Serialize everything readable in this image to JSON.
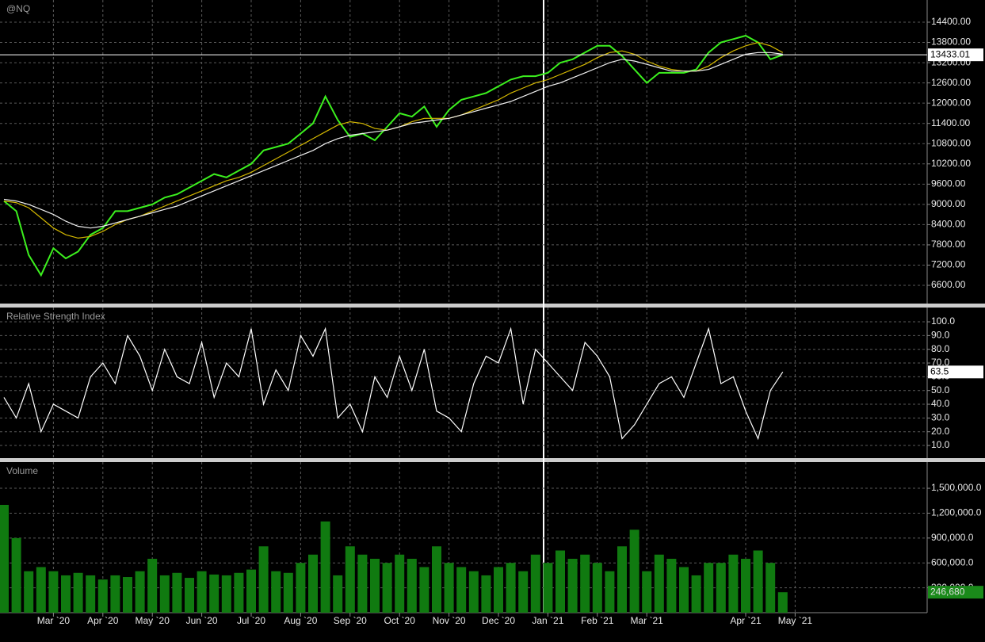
{
  "chart_data": [
    {
      "type": "line",
      "title": "@NQ",
      "ylim": [
        6060,
        15058
      ],
      "yticks": [
        {
          "value": 6600,
          "label": "6600.00"
        },
        {
          "value": 7200,
          "label": "7200.00"
        },
        {
          "value": 7800,
          "label": "7800.00"
        },
        {
          "value": 8400,
          "label": "8400.00"
        },
        {
          "value": 9000,
          "label": "9000.00"
        },
        {
          "value": 9600,
          "label": "9600.00"
        },
        {
          "value": 10200,
          "label": "10200.00"
        },
        {
          "value": 10800,
          "label": "10800.00"
        },
        {
          "value": 11400,
          "label": "11400.00"
        },
        {
          "value": 12000,
          "label": "12000.00"
        },
        {
          "value": 12600,
          "label": "12600.00"
        },
        {
          "value": 13200,
          "label": "13200.00"
        },
        {
          "value": 13800,
          "label": "13800.00"
        },
        {
          "value": 14400,
          "label": "14400.00"
        }
      ],
      "grid": true,
      "series": [
        {
          "color": "#3cf01e",
          "values": [
            9100,
            8800,
            7500,
            6900,
            7700,
            7400,
            7600,
            8100,
            8300,
            8800,
            8800,
            8900,
            9000,
            9200,
            9300,
            9500,
            9700,
            9900,
            9800,
            10000,
            10200,
            10600,
            10700,
            10800,
            11100,
            11400,
            12200,
            11500,
            11000,
            11100,
            10900,
            11300,
            11700,
            11600,
            11900,
            11300,
            11800,
            12100,
            12200,
            12300,
            12500,
            12700,
            12800,
            12800,
            12900,
            13200,
            13300,
            13500,
            13700,
            13700,
            13400,
            13000,
            12600,
            12900,
            12900,
            12900,
            13000,
            13500,
            13800,
            13900,
            14000,
            13800,
            13300,
            13433.01,
            null
          ]
        },
        {
          "color": "#d4b800",
          "values": [
            9100,
            9050,
            8900,
            8600,
            8300,
            8100,
            8000,
            8050,
            8200,
            8400,
            8550,
            8650,
            8800,
            8950,
            9100,
            9250,
            9400,
            9550,
            9700,
            9800,
            9950,
            10150,
            10350,
            10550,
            10750,
            10950,
            11150,
            11350,
            11450,
            11400,
            11250,
            11200,
            11300,
            11450,
            11550,
            11550,
            11550,
            11650,
            11800,
            11950,
            12100,
            12300,
            12450,
            12600,
            12700,
            12850,
            13000,
            13150,
            13350,
            13500,
            13550,
            13450,
            13250,
            13100,
            13000,
            12950,
            12950,
            13100,
            13350,
            13550,
            13700,
            13800,
            13700,
            13500,
            null
          ]
        },
        {
          "color": "#f0f0f0",
          "values": [
            9150,
            9100,
            9000,
            8850,
            8700,
            8500,
            8350,
            8300,
            8350,
            8450,
            8550,
            8650,
            8750,
            8850,
            8950,
            9100,
            9250,
            9400,
            9550,
            9700,
            9850,
            10000,
            10150,
            10300,
            10450,
            10600,
            10800,
            10950,
            11050,
            11100,
            11150,
            11200,
            11300,
            11400,
            11450,
            11500,
            11550,
            11650,
            11750,
            11850,
            11950,
            12050,
            12200,
            12350,
            12500,
            12600,
            12750,
            12900,
            13050,
            13200,
            13300,
            13250,
            13150,
            13050,
            12950,
            12950,
            12950,
            13000,
            13150,
            13300,
            13450,
            13500,
            13500,
            13450,
            null
          ]
        }
      ]
    },
    {
      "type": "line",
      "title": "Relative Strength Index",
      "ylim": [
        0.8,
        110.4
      ],
      "yticks": [
        {
          "value": 10,
          "label": "10.0"
        },
        {
          "value": 20,
          "label": "20.0"
        },
        {
          "value": 30,
          "label": "30.0"
        },
        {
          "value": 40,
          "label": "40.0"
        },
        {
          "value": 50,
          "label": "50.0"
        },
        {
          "value": 60,
          "label": "60.0"
        },
        {
          "value": 70,
          "label": "70.0"
        },
        {
          "value": 80,
          "label": "80.0"
        },
        {
          "value": 90,
          "label": "90.0"
        },
        {
          "value": 100,
          "label": "100.0"
        }
      ],
      "grid": true,
      "series": [
        {
          "color": "#ffffff",
          "values": [
            45,
            30,
            55,
            20,
            40,
            35,
            30,
            60,
            70,
            55,
            90,
            75,
            50,
            80,
            60,
            55,
            85,
            45,
            70,
            60,
            95,
            40,
            65,
            50,
            90,
            75,
            95,
            30,
            40,
            20,
            60,
            45,
            75,
            50,
            80,
            35,
            30,
            20,
            55,
            75,
            70,
            95,
            40,
            80,
            70,
            60,
            50,
            85,
            75,
            60,
            15,
            25,
            40,
            55,
            60,
            45,
            70,
            95,
            55,
            60,
            35,
            15,
            50,
            63.5,
            null
          ]
        }
      ]
    },
    {
      "type": "bar",
      "title": "Volume",
      "ylim": [
        0,
        1816000
      ],
      "yticks": [
        {
          "value": 300000,
          "label": "300,000.0"
        },
        {
          "value": 600000,
          "label": "600,000.0"
        },
        {
          "value": 900000,
          "label": "900,000.0"
        },
        {
          "value": 1200000,
          "label": "1,200,000.0"
        },
        {
          "value": 1500000,
          "label": "1,500,000.0"
        }
      ],
      "grid": true,
      "categories": [
        null,
        null,
        null,
        null,
        "Mar `20",
        null,
        null,
        null,
        "Apr `20",
        null,
        null,
        null,
        "May `20",
        null,
        null,
        null,
        "Jun `20",
        null,
        null,
        null,
        "Jul `20",
        null,
        null,
        null,
        "Aug `20",
        null,
        null,
        null,
        "Sep `20",
        null,
        null,
        null,
        "Oct `20",
        null,
        null,
        null,
        "Nov `20",
        null,
        null,
        null,
        "Dec `20",
        null,
        null,
        null,
        "Jan `21",
        null,
        null,
        null,
        "Feb `21",
        null,
        null,
        null,
        "Mar `21",
        null,
        null,
        null,
        null,
        null,
        null,
        null,
        "Apr `21",
        null,
        null,
        null,
        "May `21"
      ],
      "series": [
        {
          "color": "#107a10",
          "values": [
            1300000,
            900000,
            500000,
            550000,
            500000,
            450000,
            480000,
            450000,
            400000,
            450000,
            430000,
            500000,
            650000,
            450000,
            480000,
            420000,
            500000,
            460000,
            450000,
            480000,
            520000,
            800000,
            500000,
            480000,
            600000,
            700000,
            1100000,
            450000,
            800000,
            700000,
            650000,
            600000,
            700000,
            650000,
            550000,
            800000,
            600000,
            550000,
            500000,
            450000,
            550000,
            600000,
            500000,
            700000,
            600000,
            750000,
            650000,
            700000,
            600000,
            500000,
            800000,
            1000000,
            500000,
            700000,
            650000,
            550000,
            450000,
            600000,
            600000,
            700000,
            650000,
            750000,
            600000,
            246680,
            null
          ],
          "value_labels": [
            null,
            null,
            null,
            null,
            null,
            null,
            null,
            null,
            null,
            null,
            null,
            null,
            null,
            null,
            null,
            null,
            null,
            null,
            null,
            null,
            null,
            null,
            null,
            null,
            null,
            null,
            null,
            null,
            null,
            null,
            null,
            null,
            null,
            null,
            null,
            null,
            null,
            null,
            null,
            null,
            null,
            null,
            null,
            null,
            null,
            null,
            null,
            null,
            null,
            null,
            null,
            null,
            null,
            null,
            null,
            null,
            null,
            null,
            null,
            null,
            null,
            null,
            null,
            "246,680",
            null
          ]
        }
      ]
    }
  ]
}
